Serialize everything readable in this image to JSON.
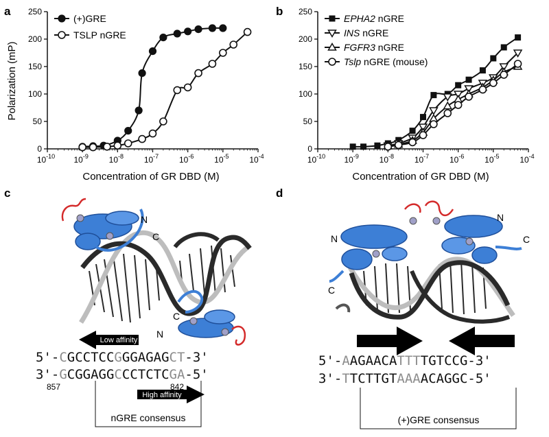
{
  "panels": {
    "a": "a",
    "b": "b",
    "c": "c",
    "d": "d"
  },
  "superscripts": {
    "a": [
      "-10",
      "-9",
      "-8",
      "-7",
      "-6",
      "-5",
      "-4"
    ],
    "b": [
      "-10",
      "-9",
      "-8",
      "-7",
      "-6",
      "-5",
      "-4"
    ]
  },
  "chart_data": [
    {
      "type": "scatter",
      "panel": "a",
      "xlabel": "Concentration of GR DBD (M)",
      "ylabel": "Polarization (mP)",
      "x_scale": "log",
      "xlim": [
        1e-10,
        0.0001
      ],
      "ylim": [
        0,
        250
      ],
      "y_ticks": [
        "0",
        "50",
        "100",
        "150",
        "200",
        "250"
      ],
      "x_tick_base": "10",
      "legend_position": "top-left",
      "series": [
        {
          "name": "(+)GRE",
          "marker": "filled-circle",
          "fit": "sigmoid",
          "x": [
            1e-09,
            2e-09,
            4e-09,
            1e-08,
            2e-08,
            4e-08,
            5e-08,
            1e-07,
            2e-07,
            5e-07,
            1e-06,
            2e-06,
            5e-06,
            1e-05
          ],
          "y": [
            4,
            5,
            6,
            15,
            33,
            70,
            138,
            178,
            203,
            210,
            214,
            218,
            220,
            220
          ]
        },
        {
          "name": "TSLP nGRE",
          "marker": "open-circle",
          "fit": "sigmoid",
          "x": [
            1e-09,
            2e-09,
            5e-09,
            1e-08,
            2e-08,
            5e-08,
            1e-07,
            2e-07,
            5e-07,
            1e-06,
            2e-06,
            5e-06,
            1e-05,
            2e-05,
            5e-05
          ],
          "y": [
            3,
            3,
            4,
            6,
            10,
            18,
            28,
            50,
            107,
            112,
            138,
            155,
            175,
            190,
            213
          ]
        }
      ]
    },
    {
      "type": "scatter",
      "panel": "b",
      "xlabel": "Concentration of GR DBD (M)",
      "ylabel": "",
      "x_scale": "log",
      "xlim": [
        1e-10,
        0.0001
      ],
      "ylim": [
        0,
        250
      ],
      "y_ticks": [
        "0",
        "50",
        "100",
        "150",
        "200",
        "250"
      ],
      "x_tick_base": "10",
      "legend_position": "top-left",
      "series": [
        {
          "name": "EPHA2",
          "suffix": " nGRE",
          "italic": true,
          "marker": "filled-square",
          "x": [
            1e-09,
            2e-09,
            5e-09,
            1e-08,
            2e-08,
            5e-08,
            1e-07,
            2e-07,
            5e-07,
            1e-06,
            2e-06,
            5e-06,
            1e-05,
            2e-05,
            5e-05
          ],
          "y": [
            4,
            4,
            6,
            10,
            16,
            33,
            58,
            98,
            100,
            116,
            126,
            143,
            165,
            185,
            203
          ]
        },
        {
          "name": "INS",
          "suffix": " nGRE",
          "italic": true,
          "marker": "open-triangle-down",
          "x": [
            1e-08,
            2e-08,
            5e-08,
            1e-07,
            2e-07,
            5e-07,
            1e-06,
            2e-06,
            5e-06,
            1e-05,
            2e-05,
            5e-05
          ],
          "y": [
            6,
            10,
            20,
            40,
            70,
            95,
            100,
            110,
            120,
            130,
            150,
            175
          ]
        },
        {
          "name": "FGFR3",
          "suffix": " nGRE",
          "italic": true,
          "marker": "open-triangle-up",
          "x": [
            1e-08,
            2e-08,
            5e-08,
            1e-07,
            2e-07,
            5e-07,
            1e-06,
            2e-06,
            5e-06,
            1e-05,
            2e-05,
            5e-05
          ],
          "y": [
            5,
            8,
            15,
            30,
            55,
            78,
            90,
            100,
            112,
            125,
            140,
            150
          ]
        },
        {
          "name": "Tslp",
          "suffix": " nGRE (mouse)",
          "italic": true,
          "marker": "open-circle",
          "x": [
            1e-08,
            2e-08,
            5e-08,
            1e-07,
            2e-07,
            5e-07,
            1e-06,
            2e-06,
            5e-06,
            1e-05,
            2e-05,
            5e-05
          ],
          "y": [
            4,
            7,
            12,
            25,
            45,
            65,
            80,
            95,
            108,
            120,
            135,
            155
          ]
        }
      ]
    }
  ],
  "panel_c": {
    "label_N": "N",
    "label_C": "C",
    "label_C2": "C",
    "label_N2": "N",
    "low_affinity": "Low affinity",
    "high_affinity": "High affinity",
    "strand_top": [
      {
        "t": "5'-",
        "g": false
      },
      {
        "t": "C",
        "g": true
      },
      {
        "t": "GCCTCC",
        "g": false
      },
      {
        "t": "G",
        "g": true
      },
      {
        "t": "GGAGAG",
        "g": false
      },
      {
        "t": "CT",
        "g": true
      },
      {
        "t": "-3'",
        "g": false
      }
    ],
    "strand_bottom": [
      {
        "t": "3'-",
        "g": false
      },
      {
        "t": "G",
        "g": true
      },
      {
        "t": "CGGAGG",
        "g": false
      },
      {
        "t": "C",
        "g": true
      },
      {
        "t": "CCTCTC",
        "g": false
      },
      {
        "t": "GA",
        "g": true
      },
      {
        "t": "-5'",
        "g": false
      }
    ],
    "pos_left": "857",
    "pos_right": "842",
    "consensus": "nGRE consensus"
  },
  "panel_d": {
    "label_N": "N",
    "label_C": "C",
    "label_N2": "N",
    "label_C2": "C",
    "strand_top": [
      {
        "t": "5'-",
        "g": false
      },
      {
        "t": "A",
        "g": true
      },
      {
        "t": "AGAACA",
        "g": false
      },
      {
        "t": "TTT",
        "g": true
      },
      {
        "t": "TGTCCG",
        "g": false
      },
      {
        "t": "-3'",
        "g": false
      }
    ],
    "strand_bottom": [
      {
        "t": "3'-",
        "g": false
      },
      {
        "t": "T",
        "g": true
      },
      {
        "t": "TCTTGT",
        "g": false
      },
      {
        "t": "AAA",
        "g": true
      },
      {
        "t": "ACAGGC",
        "g": false
      },
      {
        "t": "-5'",
        "g": false
      }
    ],
    "consensus": "(+)GRE consensus"
  },
  "colors": {
    "ink": "#111111",
    "grey_base": "#8c8c8c",
    "protein_blue": "#3d7fd6",
    "protein_dark": "#1f4f9a",
    "loop_red": "#d42b2b",
    "dna_dark": "#2a2a2a",
    "dna_light": "#bdbdbd"
  }
}
